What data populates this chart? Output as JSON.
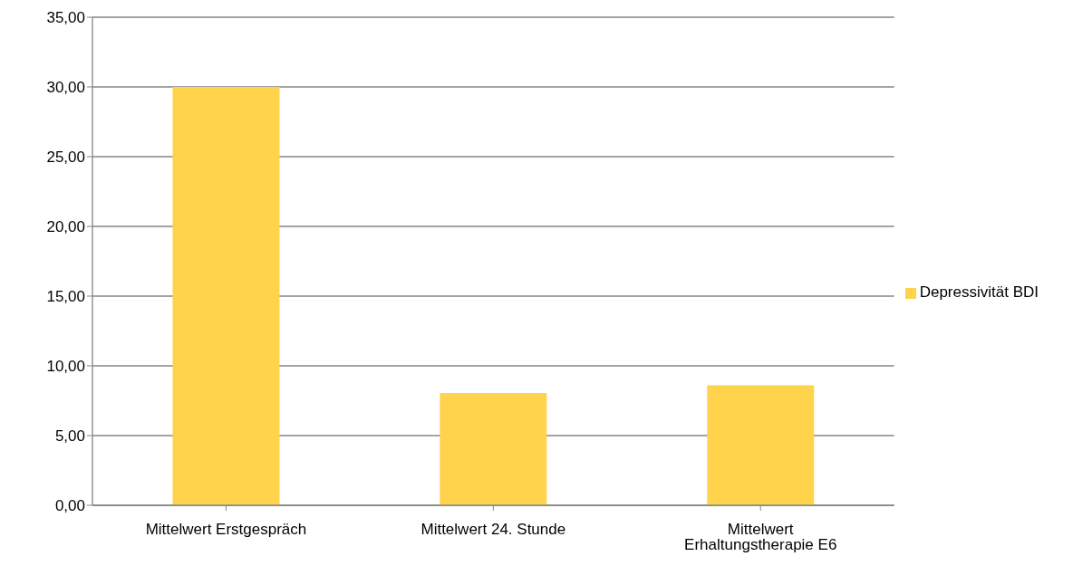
{
  "chart_data": {
    "type": "bar",
    "categories": [
      "Mittelwert Erstgespräch",
      "Mittelwert 24. Stunde",
      "Mittelwert Erhaltungstherapie E6"
    ],
    "series": [
      {
        "name": "Depressivität BDI",
        "color": "#ffd34c",
        "values": [
          30.0,
          8.05,
          8.6
        ]
      }
    ],
    "ylim": [
      0,
      35
    ],
    "yticks": [
      {
        "value": 0,
        "label": "0,00"
      },
      {
        "value": 5,
        "label": "5,00"
      },
      {
        "value": 10,
        "label": "10,00"
      },
      {
        "value": 15,
        "label": "15,00"
      },
      {
        "value": 20,
        "label": "20,00"
      },
      {
        "value": 25,
        "label": "25,00"
      },
      {
        "value": 30,
        "label": "30,00"
      },
      {
        "value": 35,
        "label": "35,00"
      }
    ],
    "grid": "y",
    "legend": "right"
  }
}
